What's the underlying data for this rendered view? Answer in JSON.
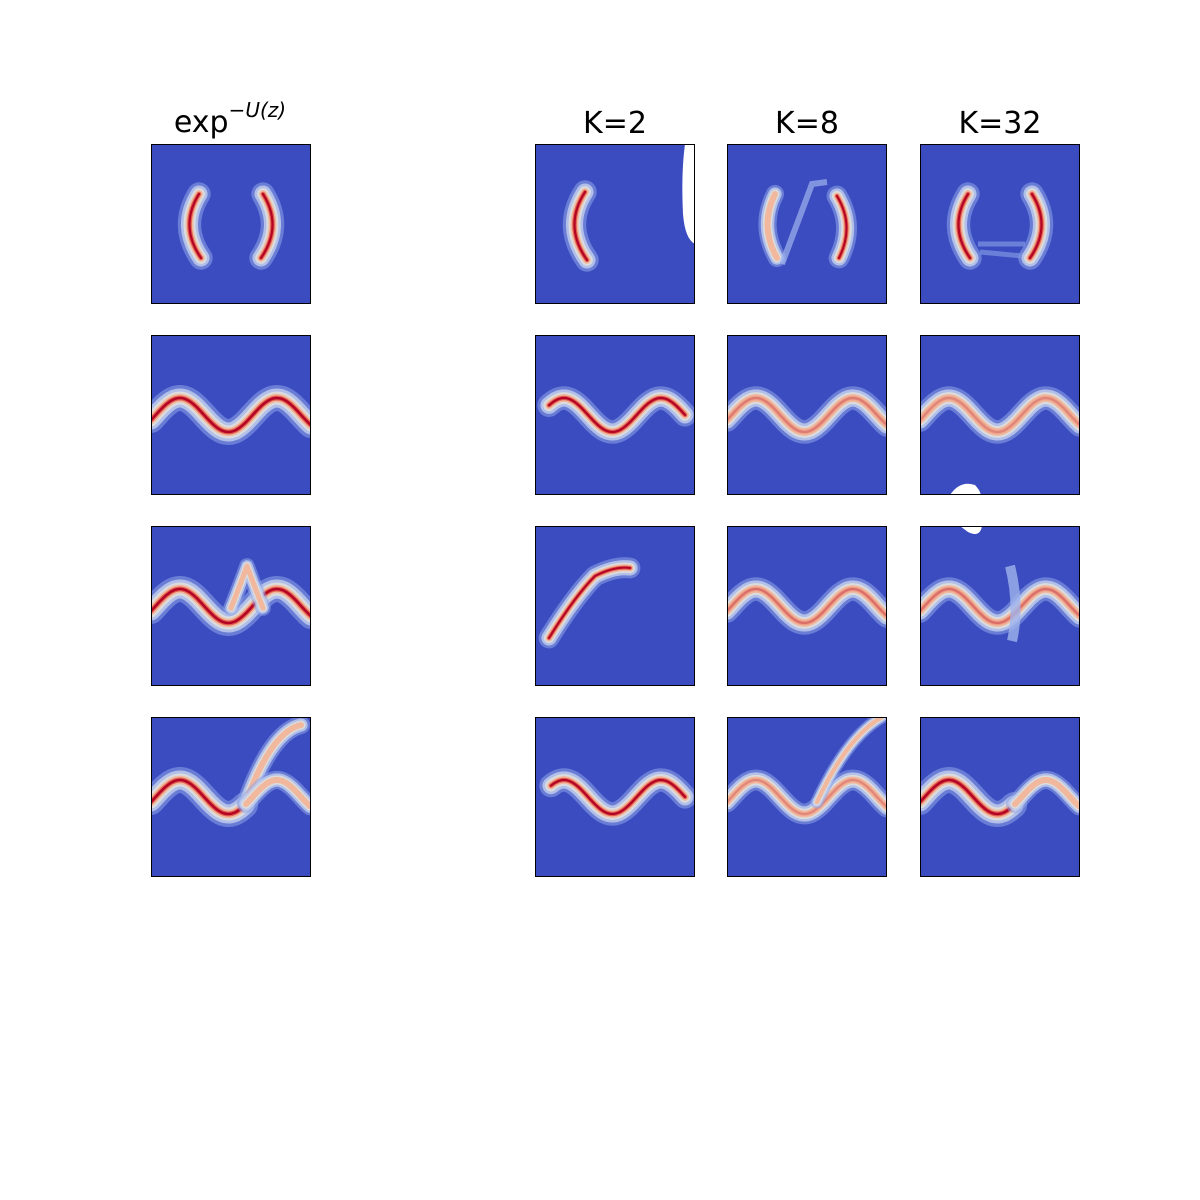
{
  "chart_data": {
    "type": "heatmap",
    "layout": "4 rows x 4 columns grid of density heatmaps; empty gap between first and second column",
    "colormap": "coolwarm",
    "colors": {
      "low": "#3b4cc0",
      "mid": "#dddddd",
      "high": "#b40426",
      "background": "#ffffff"
    },
    "axes_visible": false,
    "columns": [
      {
        "key": "target",
        "title_base": "exp",
        "title_sup": "−U(z)"
      },
      {
        "key": "k2",
        "title": "K=2"
      },
      {
        "key": "k8",
        "title": "K=8"
      },
      {
        "key": "k32",
        "title": "K=32"
      }
    ],
    "rows": [
      {
        "density": "two crescents",
        "panels": {
          "target": "both arcs full",
          "k2": "left arc only",
          "k8": "both arcs, diffuse",
          "k32": "both arcs"
        }
      },
      {
        "density": "sine wave",
        "panels": {
          "target": "full sine",
          "k2": "partial sine",
          "k8": "full sine",
          "k32": "full sine"
        }
      },
      {
        "density": "sine with upper branch",
        "panels": {
          "target": "sine + upper bump",
          "k2": "single fragment",
          "k8": "full sine",
          "k32": "sine with distortion"
        }
      },
      {
        "density": "sine with diagonal branch",
        "panels": {
          "target": "sine + rising branch",
          "k2": "partial sine",
          "k8": "sine + faint branch",
          "k32": "sine"
        }
      }
    ]
  }
}
